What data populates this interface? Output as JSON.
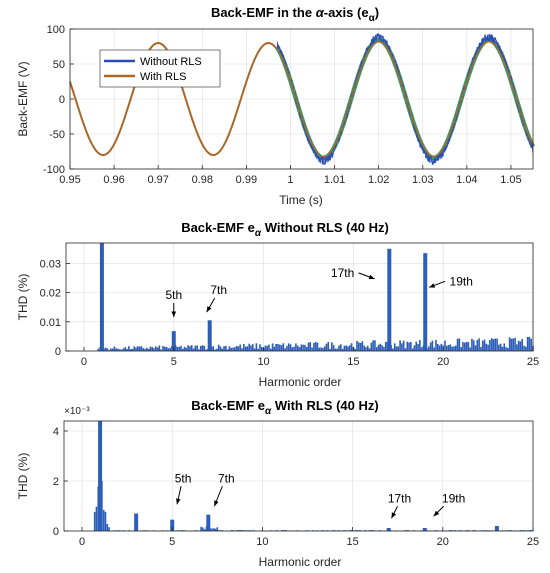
{
  "colors": {
    "without_rls": "#2a4fb3",
    "with_rls": "#a8682a",
    "green_edge": "#3c9a6a",
    "bar": "#2e5fb8",
    "grid": "#dcdcdc",
    "axis": "#262626"
  },
  "chart_data": [
    {
      "type": "line",
      "title": "Back-EMF in the α-axis (eα)",
      "title_parts": {
        "prefix": "Back-EMF in the ",
        "alpha": "α",
        "mid": "-axis (e",
        "sub": "α",
        "suffix": ")"
      },
      "xlabel": "Time (s)",
      "ylabel": "Back-EMF (V)",
      "xlim": [
        0.95,
        1.055
      ],
      "ylim": [
        -100,
        100
      ],
      "xticks": [
        0.95,
        0.96,
        0.97,
        0.98,
        0.99,
        1,
        1.01,
        1.02,
        1.03,
        1.04,
        1.05
      ],
      "xtick_labels": [
        "0.95",
        "0.96",
        "0.97",
        "0.98",
        "0.99",
        "1",
        "1.01",
        "1.02",
        "1.03",
        "1.04",
        "1.05"
      ],
      "yticks": [
        -100,
        -50,
        0,
        50,
        100
      ],
      "ytick_labels": [
        "-100",
        "-50",
        "0",
        "50",
        "100"
      ],
      "grid": true,
      "legend_position": "top-left",
      "series": [
        {
          "name": "Without RLS",
          "amplitude_before": 80,
          "amplitude_after": 88,
          "freq_before_hz": 40,
          "freq_after_hz": 40,
          "noisy_after": true
        },
        {
          "name": "With RLS",
          "amplitude_before": 80,
          "amplitude_after": 84,
          "freq_before_hz": 40,
          "freq_after_hz": 40
        }
      ],
      "switch_time": 0.997
    },
    {
      "type": "bar",
      "title": "Back-EMF eα Without RLS (40 Hz)",
      "title_parts": {
        "prefix": "Back-EMF e",
        "sub": "α",
        "suffix": " Without RLS (40 Hz)"
      },
      "xlabel": "Harmonic order",
      "ylabel": "THD (%)",
      "xlim": [
        -1,
        25
      ],
      "ylim": [
        0,
        0.037
      ],
      "xticks": [
        0,
        5,
        10,
        15,
        20,
        25
      ],
      "xtick_labels": [
        "0",
        "5",
        "10",
        "15",
        "20",
        "25"
      ],
      "yticks": [
        0,
        0.01,
        0.02,
        0.03
      ],
      "ytick_labels": [
        "0",
        "0.01",
        "0.02",
        "0.03"
      ],
      "grid": true,
      "bar_spacing": 0.1,
      "spikes": [
        {
          "x": 1,
          "y": 0.037
        },
        {
          "x": 5,
          "y": 0.0068
        },
        {
          "x": 7,
          "y": 0.0105
        },
        {
          "x": 17,
          "y": 0.035
        },
        {
          "x": 19,
          "y": 0.0335
        }
      ],
      "floor": {
        "min": 0.0003,
        "max": 0.0045,
        "trend_start": 0.0008,
        "trend_end": 0.003
      },
      "annotations": [
        {
          "text": "5th",
          "x": 5,
          "y": 0.0178
        },
        {
          "text": "7th",
          "x": 7.5,
          "y": 0.0195
        },
        {
          "text": "17th",
          "x": 14.4,
          "y": 0.0254
        },
        {
          "text": "19th",
          "x": 21.0,
          "y": 0.0225
        }
      ]
    },
    {
      "type": "bar",
      "title": "Back-EMF eα With RLS (40 Hz)",
      "title_parts": {
        "prefix": "Back-EMF e",
        "sub": "α",
        "suffix": " With RLS (40 Hz)"
      },
      "xlabel": "Harmonic order",
      "ylabel": "THD (%)",
      "exponent_label": "×10⁻³",
      "xlim": [
        -1,
        25
      ],
      "ylim": [
        0,
        4.4
      ],
      "xticks": [
        0,
        5,
        10,
        15,
        20,
        25
      ],
      "xtick_labels": [
        "0",
        "5",
        "10",
        "15",
        "20",
        "25"
      ],
      "yticks": [
        0,
        2,
        4
      ],
      "ytick_labels": [
        "0",
        "2",
        "4"
      ],
      "grid": true,
      "bar_spacing": 0.1,
      "spikes": [
        {
          "x": 1,
          "y": 4.4
        },
        {
          "x": 3,
          "y": 0.7
        },
        {
          "x": 5,
          "y": 0.45
        },
        {
          "x": 7,
          "y": 0.65
        },
        {
          "x": 17,
          "y": 0.12
        },
        {
          "x": 19,
          "y": 0.12
        },
        {
          "x": 23,
          "y": 0.2
        }
      ],
      "floor": {
        "min": 0.005,
        "max": 0.04
      },
      "annotations": [
        {
          "text": "5th",
          "x": 5.6,
          "y": 1.95
        },
        {
          "text": "7th",
          "x": 8.0,
          "y": 1.95
        },
        {
          "text": "17th",
          "x": 17.6,
          "y": 1.15
        },
        {
          "text": "19th",
          "x": 20.6,
          "y": 1.15
        }
      ]
    }
  ]
}
